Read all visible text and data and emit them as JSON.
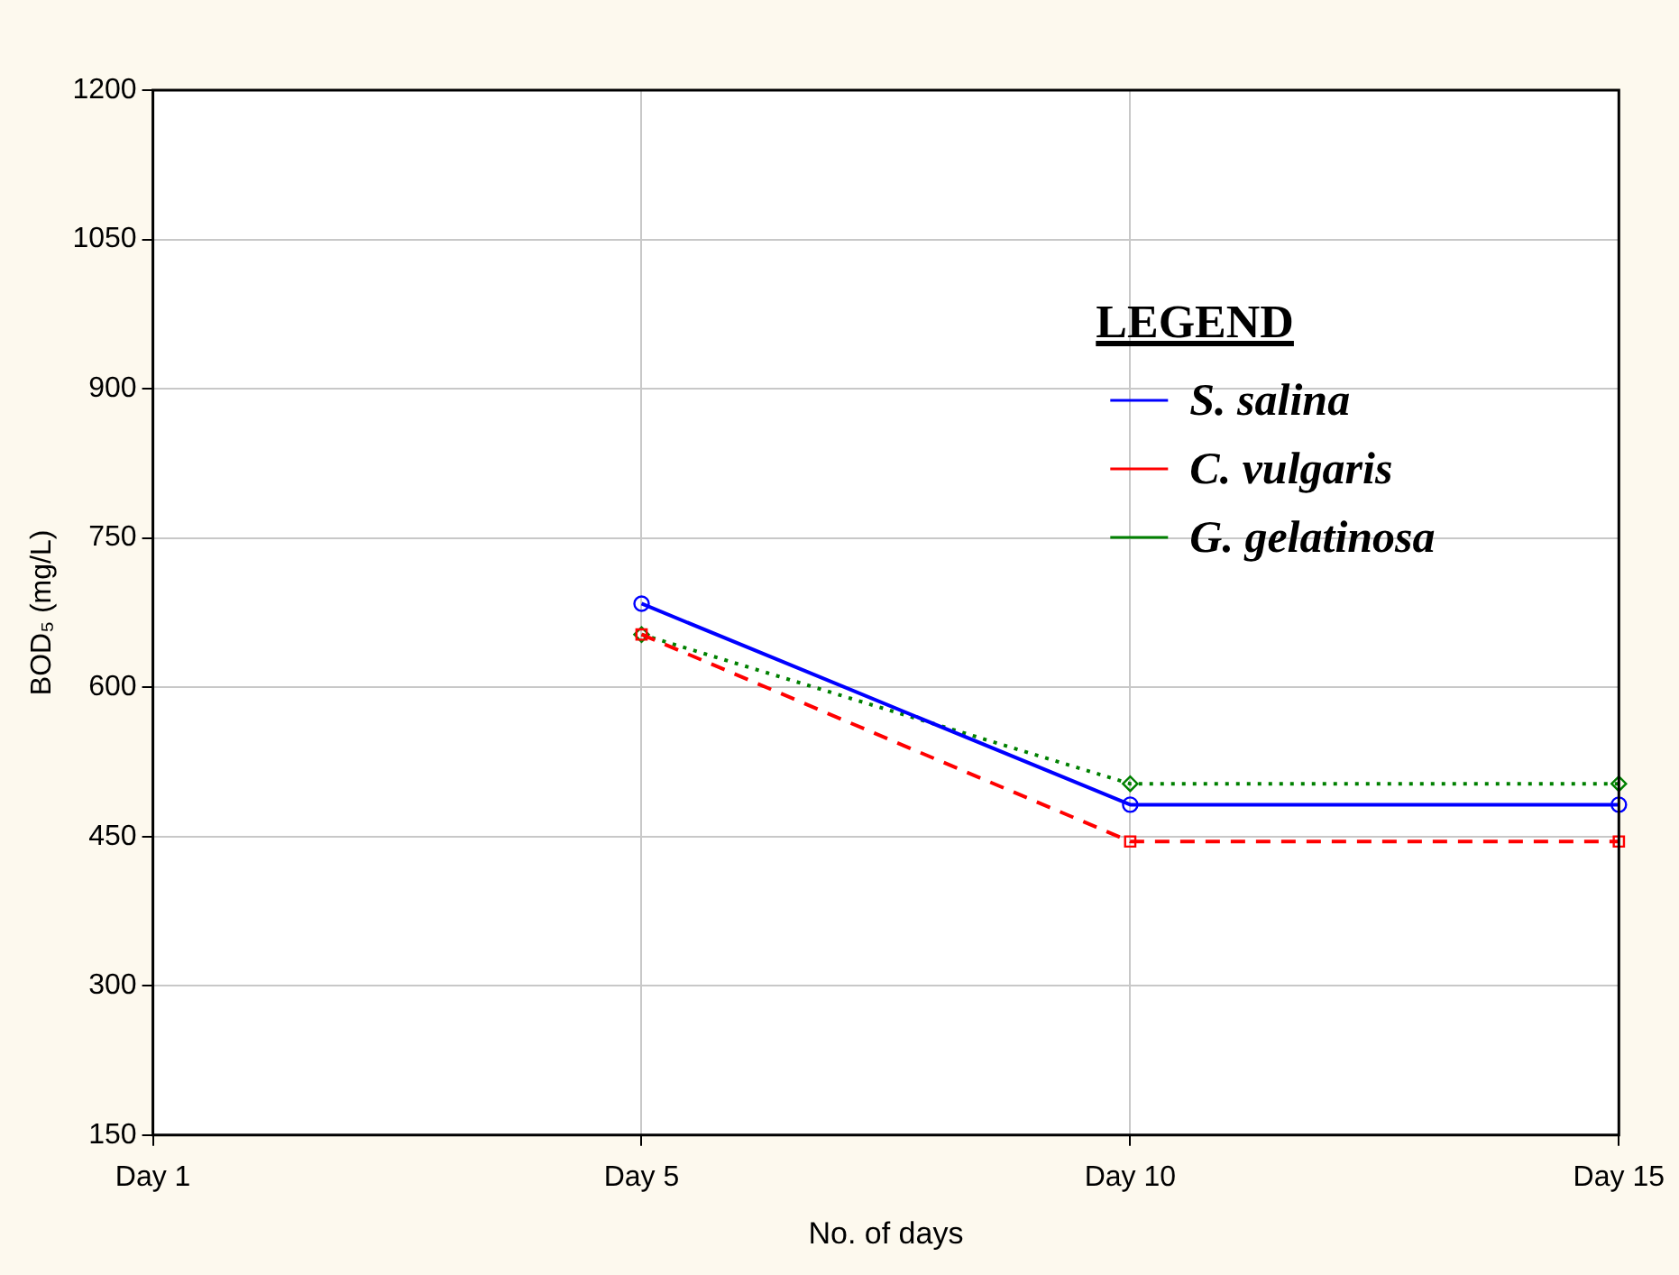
{
  "chart_data": {
    "type": "line",
    "xlabel": "No. of days",
    "ylabel": "BOD₅ (mg/L)",
    "legend_title": "LEGEND",
    "legend": "top right",
    "grid": true,
    "categories": [
      "Day 1",
      "Day 5",
      "Day 10",
      "Day 15"
    ],
    "ylim": [
      150,
      1200
    ],
    "yticks": [
      150,
      300,
      450,
      600,
      750,
      900,
      1050,
      1200
    ],
    "series": [
      {
        "name": "S. salina",
        "color": "#0000ff",
        "marker": "circle",
        "line_style": "solid",
        "values": [
          null,
          684,
          482,
          482
        ]
      },
      {
        "name": "C. vulgaris",
        "color": "#ff0000",
        "marker": "square",
        "line_style": "dashed",
        "values": [
          null,
          653,
          445,
          445
        ]
      },
      {
        "name": "G. gelatinosa",
        "color": "#008000",
        "marker": "diamond",
        "line_style": "dotted",
        "values": [
          null,
          653,
          503,
          503
        ]
      }
    ]
  }
}
